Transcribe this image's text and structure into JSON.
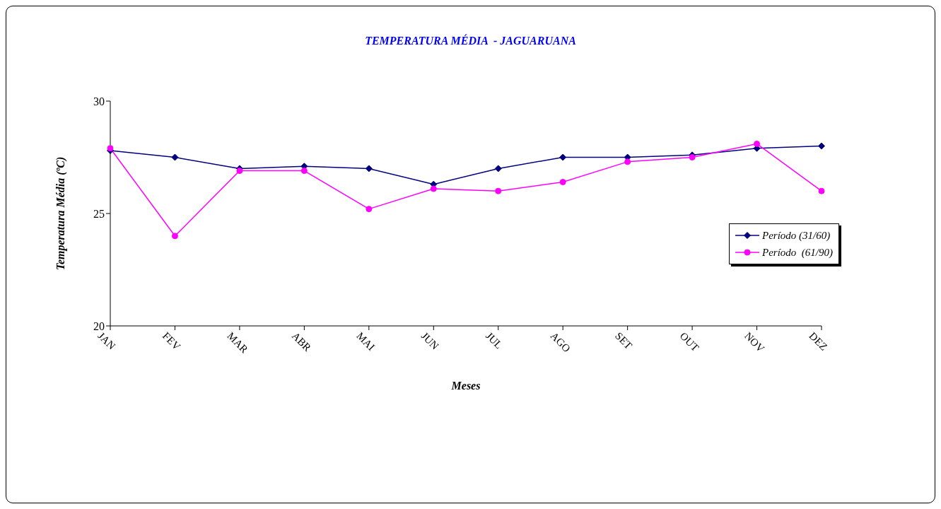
{
  "chart_data": {
    "type": "line",
    "title": "TEMPERATURA MÉDIA  - JAGUARUANA",
    "xlabel": "Meses",
    "ylabel": "Temperatura Média (ºC)",
    "categories": [
      "JAN",
      "FEV",
      "MAR",
      "ABR",
      "MAI",
      "JUN",
      "JUL",
      "AGO",
      "SET",
      "OUT",
      "NOV",
      "DEZ"
    ],
    "series": [
      {
        "name": "Período (31/60)",
        "color": "#000080",
        "marker": "diamond",
        "values": [
          27.8,
          27.5,
          27.0,
          27.1,
          27.0,
          26.3,
          27.0,
          27.5,
          27.5,
          27.6,
          27.9,
          28.0
        ]
      },
      {
        "name": "Período  (61/90)",
        "color": "#ff00ff",
        "marker": "circle",
        "values": [
          27.9,
          24.0,
          26.9,
          26.9,
          25.2,
          26.1,
          26.0,
          26.4,
          27.3,
          27.5,
          28.1,
          26.0
        ]
      }
    ],
    "ylim": [
      20,
      30
    ],
    "yticks": [
      20,
      25,
      30
    ],
    "grid": false,
    "legend": "right"
  }
}
